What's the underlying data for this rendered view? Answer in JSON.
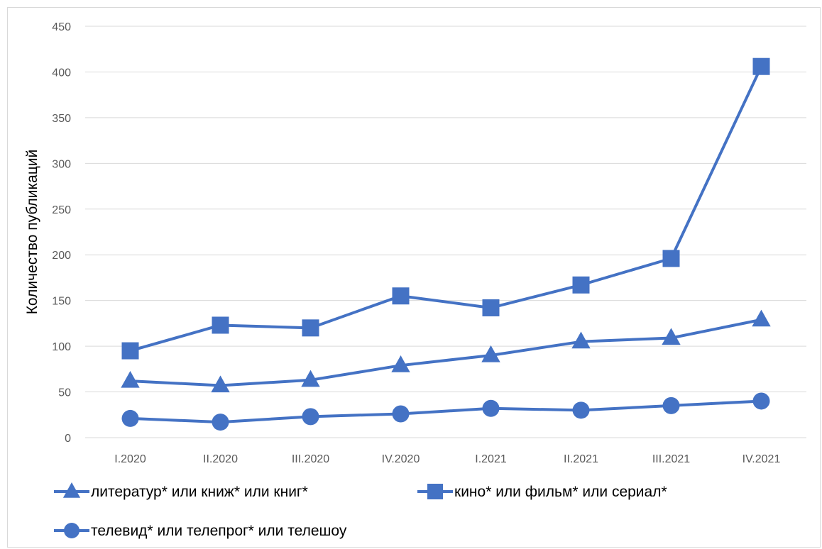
{
  "chart_data": {
    "type": "line",
    "ylabel": "Количество публикаций",
    "xlabel": "",
    "title": "",
    "ylim": [
      0,
      450
    ],
    "yticks": [
      0,
      50,
      100,
      150,
      200,
      250,
      300,
      350,
      400,
      450
    ],
    "grid": true,
    "legend_position": "bottom",
    "categories": [
      "I.2020",
      "II.2020",
      "III.2020",
      "IV.2020",
      "I.2021",
      "II.2021",
      "III.2021",
      "IV.2021"
    ],
    "series": [
      {
        "name": "литератур* или книж* или книг*",
        "marker": "triangle",
        "color": "#4472c4",
        "values": [
          62,
          57,
          63,
          79,
          90,
          105,
          109,
          129
        ]
      },
      {
        "name": "кино* или фильм* или сериал*",
        "marker": "square",
        "color": "#4472c4",
        "values": [
          95,
          123,
          120,
          155,
          142,
          167,
          196,
          406
        ]
      },
      {
        "name": "телевид* или телепрог* или телешоу",
        "marker": "circle",
        "color": "#4472c4",
        "values": [
          21,
          17,
          23,
          26,
          32,
          30,
          35,
          40
        ]
      }
    ]
  }
}
